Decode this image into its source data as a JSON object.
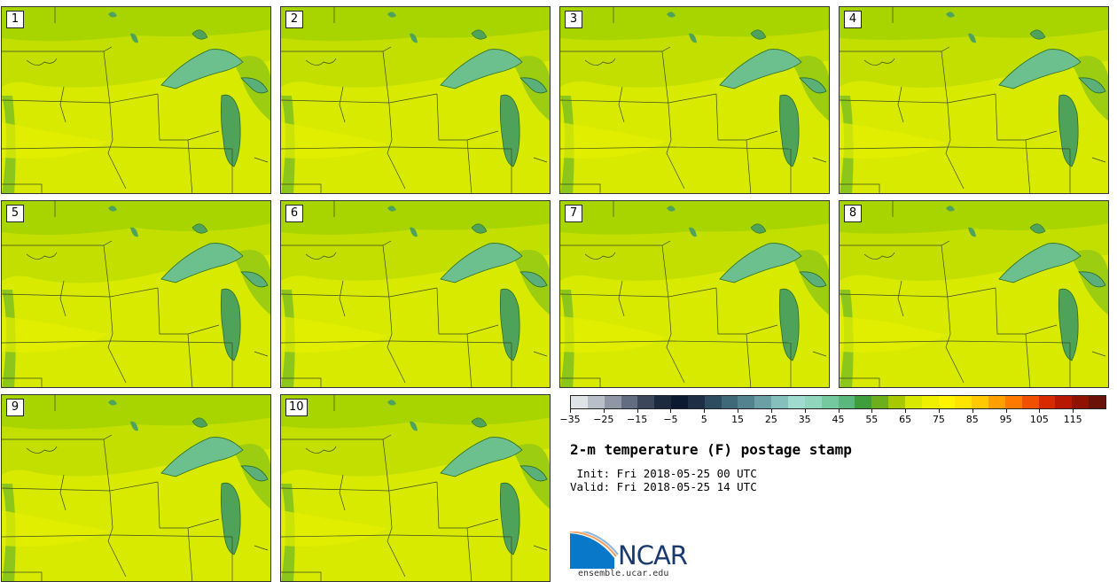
{
  "panels": [
    {
      "label": "1"
    },
    {
      "label": "2"
    },
    {
      "label": "3"
    },
    {
      "label": "4"
    },
    {
      "label": "5"
    },
    {
      "label": "6"
    },
    {
      "label": "7"
    },
    {
      "label": "8"
    },
    {
      "label": "9"
    },
    {
      "label": "10"
    }
  ],
  "colorbar": {
    "colors": [
      "#dfe3e8",
      "#b8bfc8",
      "#8f97a6",
      "#636d82",
      "#3d475c",
      "#1c2a40",
      "#0b1a30",
      "#1d2f45",
      "#2e4c60",
      "#3f6878",
      "#52838f",
      "#6aa0a6",
      "#86c0bc",
      "#9fdccf",
      "#8fd6bd",
      "#74c99e",
      "#5ab87f",
      "#3f9e3a",
      "#6cae1c",
      "#a8c800",
      "#d8e800",
      "#eef000",
      "#fff400",
      "#ffe400",
      "#ffc800",
      "#ffa000",
      "#ff7800",
      "#f05000",
      "#d82a00",
      "#b81800",
      "#901200",
      "#6a1208"
    ],
    "ticks": [
      "−35",
      "−25",
      "−15",
      "−5",
      "5",
      "15",
      "25",
      "35",
      "45",
      "55",
      "65",
      "75",
      "85",
      "95",
      "105",
      "115"
    ]
  },
  "title": "2-m temperature (F) postage stamp",
  "init_line": " Init: Fri 2018-05-25 00 UTC",
  "valid_line": "Valid: Fri 2018-05-25 14 UTC",
  "logo": {
    "name": "NCAR",
    "website": "ensemble.ucar.edu"
  }
}
